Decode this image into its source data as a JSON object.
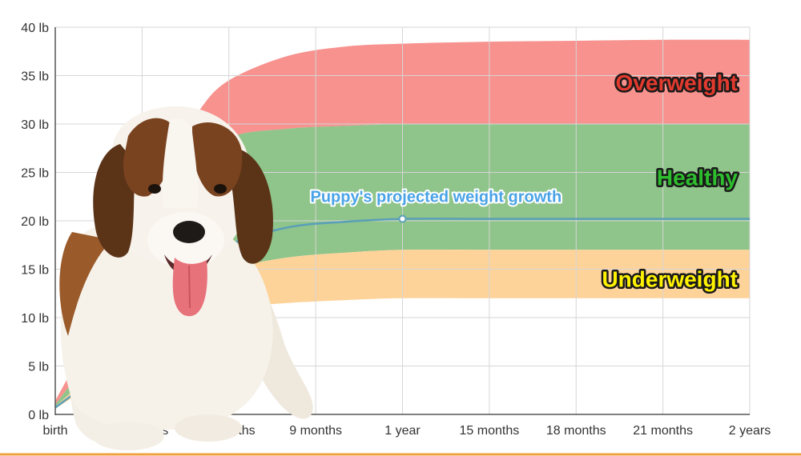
{
  "chart_data": {
    "type": "area",
    "title": "",
    "xlabel": "",
    "ylabel": "",
    "x_tick_labels": [
      "birth",
      "3 months",
      "6 months",
      "9 months",
      "1 year",
      "15 months",
      "18 months",
      "21 months",
      "2 years"
    ],
    "x_range_months": [
      0,
      24
    ],
    "y_tick_labels": [
      "0 lb",
      "5 lb",
      "10 lb",
      "15 lb",
      "20 lb",
      "25 lb",
      "30 lb",
      "35 lb",
      "40 lb"
    ],
    "ylim": [
      0,
      40
    ],
    "y_unit": "lb",
    "grid": true,
    "series": [
      {
        "name": "Overweight",
        "kind": "band",
        "color": "#f7928e",
        "label_color": "#e23a2e",
        "x": [
          0,
          1,
          2,
          3,
          4,
          5,
          6,
          8,
          10,
          12,
          15,
          18,
          21,
          24
        ],
        "lower": [
          1,
          5,
          9.5,
          14.5,
          19.5,
          24.5,
          28.5,
          29.5,
          29.8,
          30,
          30,
          30,
          30,
          30
        ],
        "upper": [
          1.4,
          7,
          13.5,
          20,
          26.5,
          31.5,
          34.5,
          37,
          38,
          38.3,
          38.5,
          38.6,
          38.7,
          38.7
        ]
      },
      {
        "name": "Healthy",
        "kind": "band",
        "color": "#8fc48a",
        "label_color": "#2ebd2e",
        "x": [
          0,
          1,
          2,
          3,
          4,
          5,
          6,
          8,
          10,
          12,
          15,
          18,
          21,
          24
        ],
        "lower": [
          0.8,
          3.5,
          6.5,
          9,
          11.5,
          13.5,
          15,
          16.2,
          16.7,
          17,
          17,
          17,
          17,
          17
        ],
        "upper": [
          1,
          5,
          9.5,
          14.5,
          19.5,
          24.5,
          28.5,
          29.5,
          29.8,
          30,
          30,
          30,
          30,
          30
        ]
      },
      {
        "name": "Underweight",
        "kind": "band",
        "color": "#fdd39a",
        "label_color": "#fff200",
        "x": [
          0,
          1,
          2,
          3,
          4,
          5,
          6,
          8,
          10,
          12,
          15,
          18,
          21,
          24
        ],
        "lower": [
          0.6,
          2.5,
          4.5,
          6.5,
          8.5,
          10,
          11,
          11.5,
          11.8,
          12,
          12,
          12,
          12,
          12
        ],
        "upper": [
          0.8,
          3.5,
          6.5,
          9,
          11.5,
          13.5,
          15,
          16.2,
          16.7,
          17,
          17,
          17,
          17,
          17
        ]
      },
      {
        "name": "Puppy's projected weight growth",
        "kind": "line",
        "color": "#5a9fb8",
        "x": [
          0,
          1,
          2,
          3,
          4,
          5,
          6,
          8,
          10,
          12,
          15,
          18,
          21,
          24
        ],
        "y": [
          0.7,
          3,
          6,
          9.5,
          13,
          15.5,
          17.5,
          19.3,
          19.9,
          20.2,
          20.2,
          20.2,
          20.2,
          20.2
        ],
        "marker_at_x": 12
      }
    ]
  },
  "illustration": {
    "subject": "Saint Bernard puppy photo",
    "icon": "puppy-photo"
  }
}
